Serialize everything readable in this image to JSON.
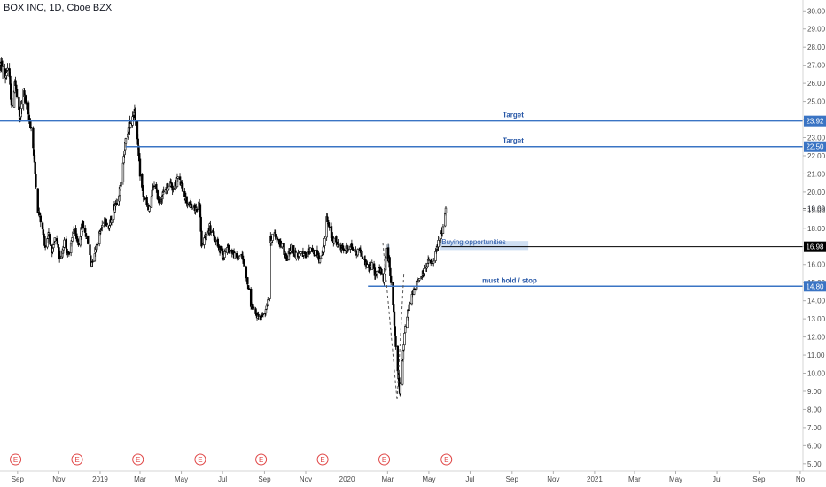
{
  "header": {
    "title": "BOX INC, 1D, Cboe BZX"
  },
  "colors": {
    "axis_text": "#4a4a4a",
    "candle": "#000000",
    "target_line": "#3a74c4",
    "price_line": "#000000",
    "support_line": "#3a74c4",
    "zone_fill": "#c7d9f0",
    "label_text": "#2656a6",
    "earnings": "#e04646"
  },
  "chart_data": {
    "type": "candlestick",
    "title": "BOX INC, 1D, Cboe BZX",
    "ylim": [
      4.6,
      30.6
    ],
    "xlim": [
      "2018-08-06",
      "2021-11-05"
    ],
    "y_ticks": [
      "5.00",
      "6.00",
      "7.00",
      "8.00",
      "9.00",
      "10.00",
      "11.00",
      "12.00",
      "13.00",
      "14.00",
      "15.00",
      "16.00",
      "17.00",
      "18.00",
      "19.00",
      "20.00",
      "21.00",
      "22.00",
      "23.00",
      "24.00",
      "25.00",
      "26.00",
      "27.00",
      "28.00",
      "29.00",
      "30.00"
    ],
    "x_ticks": [
      {
        "label": "Sep",
        "date": "2018-09-01"
      },
      {
        "label": "Nov",
        "date": "2018-11-01"
      },
      {
        "label": "2019",
        "date": "2019-01-01"
      },
      {
        "label": "Mar",
        "date": "2019-03-01"
      },
      {
        "label": "May",
        "date": "2019-05-01"
      },
      {
        "label": "Jul",
        "date": "2019-07-01"
      },
      {
        "label": "Sep",
        "date": "2019-09-01"
      },
      {
        "label": "Nov",
        "date": "2019-11-01"
      },
      {
        "label": "2020",
        "date": "2020-01-01"
      },
      {
        "label": "Mar",
        "date": "2020-03-01"
      },
      {
        "label": "May",
        "date": "2020-05-01"
      },
      {
        "label": "Jul",
        "date": "2020-07-01"
      },
      {
        "label": "Sep",
        "date": "2020-09-01"
      },
      {
        "label": "Nov",
        "date": "2020-11-01"
      },
      {
        "label": "2021",
        "date": "2021-01-01"
      },
      {
        "label": "Mar",
        "date": "2021-03-01"
      },
      {
        "label": "May",
        "date": "2021-05-01"
      },
      {
        "label": "Jul",
        "date": "2021-07-01"
      },
      {
        "label": "Sep",
        "date": "2021-09-01"
      },
      {
        "label": "No",
        "date": "2021-11-01"
      }
    ],
    "price_path": [
      [
        "2018-08-06",
        27.1
      ],
      [
        "2018-08-14",
        26.4
      ],
      [
        "2018-08-18",
        27.0
      ],
      [
        "2018-08-24",
        24.5
      ],
      [
        "2018-08-28",
        26.2
      ],
      [
        "2018-09-04",
        24.0
      ],
      [
        "2018-09-10",
        25.6
      ],
      [
        "2018-09-17",
        24.1
      ],
      [
        "2018-09-22",
        23.5
      ],
      [
        "2018-10-01",
        19.0
      ],
      [
        "2018-10-06",
        18.3
      ],
      [
        "2018-10-12",
        17.0
      ],
      [
        "2018-10-17",
        17.8
      ],
      [
        "2018-10-22",
        16.5
      ],
      [
        "2018-10-27",
        17.6
      ],
      [
        "2018-11-03",
        16.2
      ],
      [
        "2018-11-09",
        17.3
      ],
      [
        "2018-11-16",
        16.4
      ],
      [
        "2018-11-22",
        17.8
      ],
      [
        "2018-11-30",
        17.2
      ],
      [
        "2018-12-06",
        18.2
      ],
      [
        "2018-12-13",
        17.4
      ],
      [
        "2018-12-19",
        16.0
      ],
      [
        "2018-12-24",
        16.7
      ],
      [
        "2019-01-01",
        17.8
      ],
      [
        "2019-01-08",
        18.6
      ],
      [
        "2019-01-14",
        18.0
      ],
      [
        "2019-01-21",
        19.1
      ],
      [
        "2019-01-28",
        19.8
      ],
      [
        "2019-02-01",
        20.4
      ],
      [
        "2019-02-05",
        22.2
      ],
      [
        "2019-02-11",
        23.4
      ],
      [
        "2019-02-16",
        24.0
      ],
      [
        "2019-02-21",
        24.6
      ],
      [
        "2019-03-02",
        20.6
      ],
      [
        "2019-03-07",
        19.6
      ],
      [
        "2019-03-14",
        19.0
      ],
      [
        "2019-03-22",
        20.5
      ],
      [
        "2019-03-29",
        19.5
      ],
      [
        "2019-04-06",
        20.0
      ],
      [
        "2019-04-14",
        20.6
      ],
      [
        "2019-04-20",
        20.1
      ],
      [
        "2019-04-26",
        20.8
      ],
      [
        "2019-05-03",
        20.2
      ],
      [
        "2019-05-09",
        19.5
      ],
      [
        "2019-05-15",
        19.2
      ],
      [
        "2019-05-22",
        19.0
      ],
      [
        "2019-05-28",
        19.4
      ],
      [
        "2019-05-31",
        16.9
      ],
      [
        "2019-06-06",
        17.6
      ],
      [
        "2019-06-12",
        18.1
      ],
      [
        "2019-06-18",
        17.5
      ],
      [
        "2019-06-25",
        17.0
      ],
      [
        "2019-07-01",
        16.5
      ],
      [
        "2019-07-08",
        16.9
      ],
      [
        "2019-07-15",
        16.7
      ],
      [
        "2019-07-22",
        16.3
      ],
      [
        "2019-07-29",
        16.6
      ],
      [
        "2019-08-05",
        15.4
      ],
      [
        "2019-08-12",
        13.8
      ],
      [
        "2019-08-19",
        13.2
      ],
      [
        "2019-08-26",
        13.1
      ],
      [
        "2019-09-02",
        13.4
      ],
      [
        "2019-09-06",
        14.1
      ],
      [
        "2019-09-09",
        17.3
      ],
      [
        "2019-09-14",
        17.7
      ],
      [
        "2019-09-21",
        17.4
      ],
      [
        "2019-09-28",
        16.9
      ],
      [
        "2019-10-04",
        16.3
      ],
      [
        "2019-10-11",
        17.0
      ],
      [
        "2019-10-18",
        16.5
      ],
      [
        "2019-10-25",
        16.7
      ],
      [
        "2019-11-01",
        16.4
      ],
      [
        "2019-11-08",
        16.9
      ],
      [
        "2019-11-15",
        16.6
      ],
      [
        "2019-11-22",
        16.3
      ],
      [
        "2019-11-27",
        16.8
      ],
      [
        "2019-12-02",
        18.5
      ],
      [
        "2019-12-08",
        17.6
      ],
      [
        "2019-12-15",
        17.2
      ],
      [
        "2019-12-22",
        17.0
      ],
      [
        "2019-12-29",
        16.8
      ],
      [
        "2020-01-06",
        17.1
      ],
      [
        "2020-01-13",
        16.6
      ],
      [
        "2020-01-20",
        16.8
      ],
      [
        "2020-01-27",
        16.2
      ],
      [
        "2020-02-03",
        15.7
      ],
      [
        "2020-02-08",
        16.0
      ],
      [
        "2020-02-12",
        15.4
      ],
      [
        "2020-02-16",
        15.9
      ],
      [
        "2020-02-20",
        15.6
      ],
      [
        "2020-02-24",
        15.0
      ],
      [
        "2020-02-28",
        16.8
      ],
      [
        "2020-03-03",
        16.2
      ],
      [
        "2020-03-07",
        14.8
      ],
      [
        "2020-03-10",
        13.3
      ],
      [
        "2020-03-13",
        11.5
      ],
      [
        "2020-03-16",
        10.0
      ],
      [
        "2020-03-19",
        9.0
      ],
      [
        "2020-03-23",
        10.8
      ],
      [
        "2020-03-27",
        12.5
      ],
      [
        "2020-04-01",
        13.6
      ],
      [
        "2020-04-06",
        14.3
      ],
      [
        "2020-04-11",
        14.8
      ],
      [
        "2020-04-16",
        15.2
      ],
      [
        "2020-04-21",
        15.4
      ],
      [
        "2020-04-26",
        15.9
      ],
      [
        "2020-05-01",
        16.2
      ],
      [
        "2020-05-06",
        16.0
      ],
      [
        "2020-05-11",
        16.6
      ],
      [
        "2020-05-15",
        17.2
      ],
      [
        "2020-05-19",
        17.6
      ],
      [
        "2020-05-22",
        18.1
      ],
      [
        "2020-05-26",
        19.1
      ]
    ],
    "horizontal_levels": [
      {
        "value": 23.92,
        "label": "23.92",
        "annotation": "Target",
        "style": "target",
        "start": "2018-08-06"
      },
      {
        "value": 22.5,
        "label": "22.50",
        "annotation": "Target",
        "style": "target",
        "start": "2019-02-08"
      },
      {
        "value": 16.98,
        "label": "16.98",
        "annotation": "",
        "style": "price",
        "start": "2020-05-20"
      },
      {
        "value": 14.8,
        "label": "14.80",
        "annotation": "must hold / stop",
        "style": "support",
        "start": "2020-02-01"
      }
    ],
    "zones": [
      {
        "label": "Buying opportunities",
        "from": "2020-05-18",
        "to": "2020-09-25",
        "low": 16.8,
        "high": 17.3
      },
      {
        "label": "",
        "from": "2020-02-29",
        "to": "2020-03-04",
        "low": 16.3,
        "high": 17.1
      }
    ],
    "dashed_path": [
      [
        "2020-02-23",
        17.2
      ],
      [
        "2020-03-15",
        8.5
      ],
      [
        "2020-03-25",
        15.5
      ]
    ],
    "current_price_marker": {
      "value": 19.09,
      "label": "19.09"
    },
    "earnings_markers": [
      "2018-08-29",
      "2018-11-28",
      "2019-02-26",
      "2019-05-29",
      "2019-08-27",
      "2019-11-26",
      "2020-02-25",
      "2020-05-27"
    ],
    "earnings_label": "E"
  }
}
